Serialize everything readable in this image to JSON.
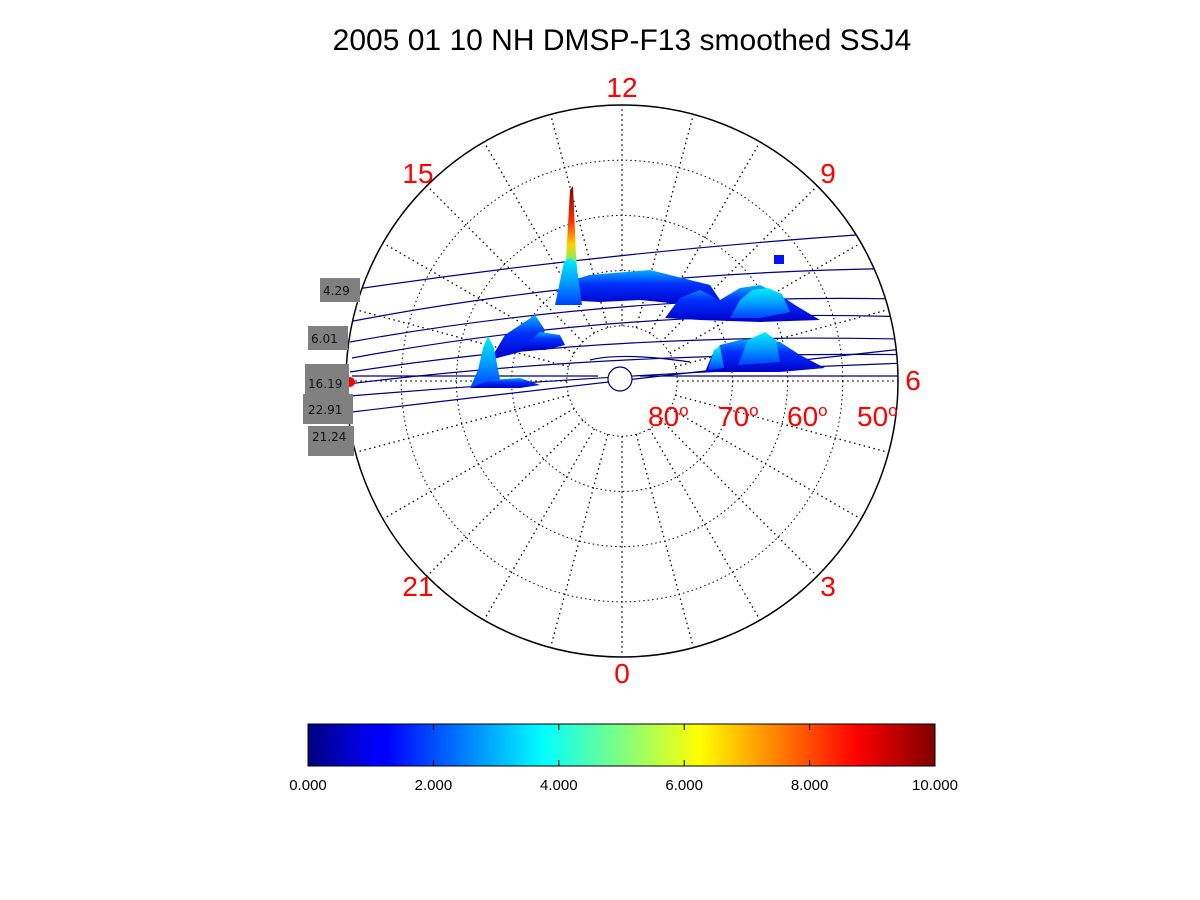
{
  "chart_data": {
    "type": "polar_surface",
    "title": "2005 01 10 NH DMSP-F13 smoothed SSJ4",
    "mlt_labels": [
      {
        "text": "12",
        "mlt": 12
      },
      {
        "text": "15",
        "mlt": 15
      },
      {
        "text": "9",
        "mlt": 9
      },
      {
        "text": "6",
        "mlt": 6
      },
      {
        "text": "3",
        "mlt": 3
      },
      {
        "text": "0",
        "mlt": 0
      },
      {
        "text": "21",
        "mlt": 21
      }
    ],
    "latitude_rings": [
      80,
      70,
      60,
      50
    ],
    "latitude_labels": [
      {
        "value": "80",
        "unit": "o"
      },
      {
        "value": "70",
        "unit": "o"
      },
      {
        "value": "60",
        "unit": "o"
      },
      {
        "value": "50",
        "unit": "o"
      }
    ],
    "pass_labels": [
      {
        "text": "4.29",
        "ut": 4.29
      },
      {
        "text": "6.01",
        "ut": 6.01
      },
      {
        "text": "16.19",
        "ut": 16.19
      },
      {
        "text": "22.91",
        "ut": 22.91
      },
      {
        "text": "21.24",
        "ut": 21.24
      }
    ],
    "colorbar": {
      "min": 0,
      "max": 10,
      "ticks": [
        "0.000",
        "2.000",
        "4.000",
        "6.000",
        "8.000",
        "10.000"
      ],
      "colormap": "jet"
    },
    "colors": {
      "label_red": "#ff0000",
      "track_blue": "#00007f",
      "tag_gray": "#808080"
    }
  }
}
